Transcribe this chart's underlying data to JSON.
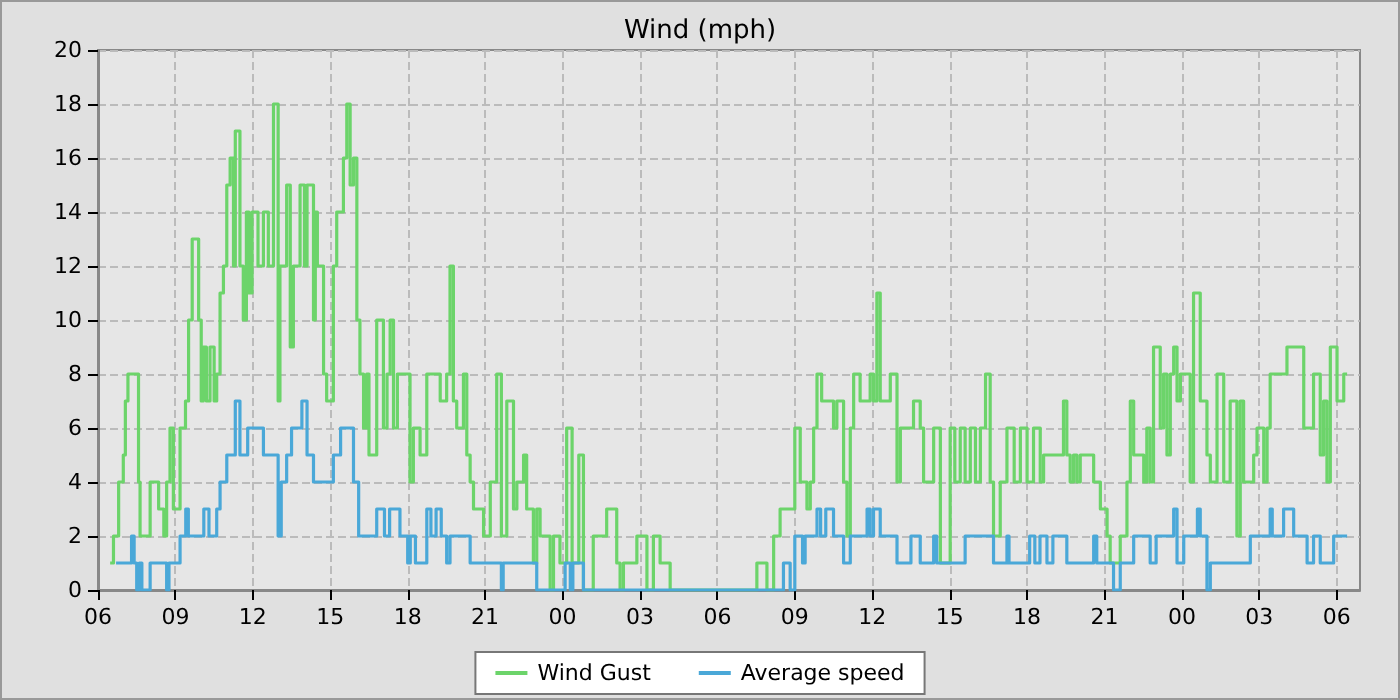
{
  "chart_data": {
    "type": "step",
    "title": "Wind (mph)",
    "xlim": [
      6,
      54.9
    ],
    "xticks": [
      {
        "value": 6,
        "label": "06"
      },
      {
        "value": 9,
        "label": "09"
      },
      {
        "value": 12,
        "label": "12"
      },
      {
        "value": 15,
        "label": "15"
      },
      {
        "value": 18,
        "label": "18"
      },
      {
        "value": 21,
        "label": "21"
      },
      {
        "value": 24,
        "label": "00"
      },
      {
        "value": 27,
        "label": "03"
      },
      {
        "value": 30,
        "label": "06"
      },
      {
        "value": 33,
        "label": "09"
      },
      {
        "value": 36,
        "label": "12"
      },
      {
        "value": 39,
        "label": "15"
      },
      {
        "value": 42,
        "label": "18"
      },
      {
        "value": 45,
        "label": "21"
      },
      {
        "value": 48,
        "label": "00"
      },
      {
        "value": 51,
        "label": "03"
      },
      {
        "value": 54,
        "label": "06"
      }
    ],
    "ylim": [
      0,
      20
    ],
    "yticks": [
      0,
      2,
      4,
      6,
      8,
      10,
      12,
      14,
      16,
      18,
      20
    ],
    "grid": true,
    "legend": "bottom",
    "marker": "none",
    "series": [
      {
        "name": "Wind Gust",
        "color": "#6cd46a",
        "x": [
          6.47,
          6.6,
          6.8,
          6.98,
          7.06,
          7.16,
          7.57,
          7.63,
          8.02,
          8.35,
          8.55,
          8.66,
          8.79,
          8.92,
          9.18,
          9.39,
          9.51,
          9.65,
          9.9,
          10.0,
          10.08,
          10.2,
          10.34,
          10.5,
          10.6,
          10.73,
          10.86,
          10.99,
          11.12,
          11.25,
          11.32,
          11.5,
          11.63,
          11.75,
          11.85,
          11.97,
          12.2,
          12.41,
          12.6,
          12.8,
          12.98,
          13.05,
          13.31,
          13.45,
          13.57,
          13.83,
          14.0,
          14.1,
          14.35,
          14.42,
          14.5,
          14.74,
          14.86,
          15.12,
          15.25,
          15.51,
          15.64,
          15.77,
          15.9,
          16.03,
          16.15,
          16.29,
          16.41,
          16.5,
          16.8,
          17.06,
          17.2,
          17.32,
          17.45,
          17.6,
          18.09,
          18.22,
          18.48,
          18.74,
          19.26,
          19.51,
          19.64,
          19.77,
          19.9,
          20.16,
          20.29,
          20.42,
          20.55,
          20.94,
          21.2,
          21.45,
          21.63,
          21.84,
          22.1,
          22.23,
          22.49,
          22.61,
          22.87,
          23.0,
          23.13,
          23.52,
          23.65,
          23.9,
          24.16,
          24.37,
          24.63,
          24.81,
          25.19,
          25.71,
          26.1,
          26.23,
          26.36,
          26.88,
          27.27,
          27.52,
          27.78,
          28.17,
          31.53,
          31.92,
          32.18,
          32.43,
          33.0,
          33.21,
          33.47,
          33.6,
          33.73,
          33.86,
          34.04,
          34.5,
          34.63,
          34.89,
          35.02,
          35.15,
          35.28,
          35.53,
          35.92,
          36.05,
          36.18,
          36.31,
          36.7,
          36.96,
          37.09,
          37.6,
          37.86,
          37.99,
          38.38,
          38.64,
          39.02,
          39.2,
          39.41,
          39.6,
          39.8,
          40.0,
          40.19,
          40.39,
          40.57,
          40.7,
          40.96,
          41.22,
          41.5,
          41.74,
          42.0,
          42.25,
          42.51,
          42.64,
          43.41,
          43.54,
          43.67,
          43.8,
          43.93,
          44.06,
          44.58,
          44.84,
          45.1,
          45.22,
          45.61,
          45.87,
          46.0,
          46.13,
          46.52,
          46.64,
          46.77,
          46.9,
          47.16,
          47.29,
          47.42,
          47.55,
          47.68,
          47.81,
          47.94,
          48.32,
          48.45,
          48.71,
          48.97,
          49.1,
          49.36,
          49.62,
          49.87,
          50.13,
          50.26,
          50.39,
          50.78,
          50.91,
          51.17,
          51.3,
          51.42,
          52.07,
          52.72,
          53.1,
          53.36,
          53.49,
          53.62,
          53.75,
          54.01,
          54.27,
          54.4
        ],
        "values": [
          1,
          2,
          4,
          5,
          7,
          8,
          4,
          2,
          4,
          3,
          2,
          4,
          6,
          3,
          6,
          7,
          10,
          13,
          10,
          7,
          9,
          7,
          9,
          7,
          8,
          11,
          12,
          15,
          16,
          12,
          17,
          12,
          10,
          14,
          11,
          14,
          12,
          14,
          12,
          18,
          7,
          12,
          15,
          9,
          12,
          15,
          12,
          15,
          10,
          14,
          12,
          8,
          7,
          12,
          14,
          16,
          18,
          15,
          16,
          10,
          8,
          6,
          8,
          5,
          10,
          6,
          8,
          10,
          6,
          8,
          4,
          6,
          5,
          8,
          7,
          8,
          12,
          7,
          6,
          8,
          5,
          4,
          3,
          2,
          4,
          8,
          2,
          7,
          3,
          4,
          5,
          3,
          1,
          3,
          2,
          0,
          2,
          1,
          6,
          1,
          5,
          0,
          2,
          3,
          1,
          0,
          1,
          2,
          0,
          2,
          1,
          0,
          1,
          0,
          2,
          3,
          6,
          4,
          3,
          4,
          6,
          8,
          7,
          6,
          7,
          4,
          2,
          6,
          8,
          7,
          8,
          7,
          11,
          7,
          8,
          4,
          6,
          7,
          6,
          4,
          6,
          1,
          6,
          4,
          6,
          4,
          6,
          4,
          6,
          8,
          4,
          2,
          4,
          6,
          4,
          6,
          4,
          6,
          4,
          5,
          7,
          5,
          4,
          5,
          4,
          5,
          4,
          3,
          2,
          1,
          2,
          4,
          7,
          5,
          4,
          6,
          4,
          9,
          6,
          8,
          5,
          8,
          9,
          7,
          8,
          4,
          11,
          7,
          5,
          4,
          8,
          4,
          7,
          2,
          7,
          4,
          5,
          6,
          4,
          6,
          8,
          9,
          6,
          8,
          5,
          7,
          4,
          9,
          7,
          8,
          8
        ]
      },
      {
        "name": "Average speed",
        "color": "#4aa8d8",
        "x": [
          6.7,
          7.3,
          7.4,
          7.5,
          7.6,
          7.7,
          8.02,
          8.66,
          8.75,
          9.18,
          9.4,
          9.5,
          10.1,
          10.3,
          10.6,
          10.73,
          10.99,
          11.32,
          11.5,
          11.8,
          12.41,
          12.98,
          13.1,
          13.31,
          13.5,
          13.9,
          14.1,
          14.35,
          15.12,
          15.4,
          15.9,
          16.1,
          16.8,
          17.1,
          17.3,
          17.7,
          18.0,
          18.1,
          18.3,
          18.74,
          18.9,
          19.1,
          19.3,
          19.51,
          19.64,
          20.42,
          21.63,
          21.7,
          23.0,
          24.1,
          24.3,
          24.4,
          24.81,
          32.56,
          32.82,
          33.0,
          33.3,
          33.4,
          33.86,
          34.0,
          34.2,
          34.5,
          34.89,
          35.15,
          35.8,
          35.92,
          36.05,
          36.31,
          36.96,
          37.5,
          37.86,
          38.38,
          38.5,
          39.6,
          40.7,
          41.22,
          41.3,
          42.1,
          42.3,
          42.5,
          42.77,
          43.0,
          43.54,
          44.58,
          44.7,
          45.35,
          45.61,
          46.13,
          46.77,
          47.0,
          47.68,
          47.81,
          48.07,
          48.6,
          48.71,
          48.97,
          49.1,
          50.65,
          51.42,
          51.5,
          51.94,
          52.33,
          52.85,
          53.1,
          53.36,
          53.88,
          54.4
        ],
        "values": [
          1,
          2,
          1,
          0,
          1,
          0,
          1,
          0,
          1,
          2,
          3,
          2,
          3,
          2,
          3,
          4,
          5,
          7,
          5,
          6,
          5,
          2,
          4,
          5,
          6,
          7,
          5,
          4,
          5,
          6,
          4,
          2,
          3,
          2,
          3,
          2,
          1,
          2,
          1,
          3,
          2,
          3,
          2,
          1,
          2,
          1,
          0,
          1,
          0,
          1,
          0,
          1,
          0,
          1,
          0,
          2,
          1,
          2,
          3,
          2,
          3,
          2,
          1,
          2,
          3,
          2,
          3,
          2,
          1,
          2,
          1,
          2,
          1,
          2,
          1,
          2,
          1,
          2,
          1,
          2,
          1,
          2,
          1,
          2,
          1,
          0,
          1,
          2,
          1,
          2,
          3,
          1,
          2,
          3,
          2,
          0,
          1,
          2,
          3,
          2,
          3,
          2,
          1,
          2,
          1,
          2,
          2
        ]
      }
    ]
  }
}
